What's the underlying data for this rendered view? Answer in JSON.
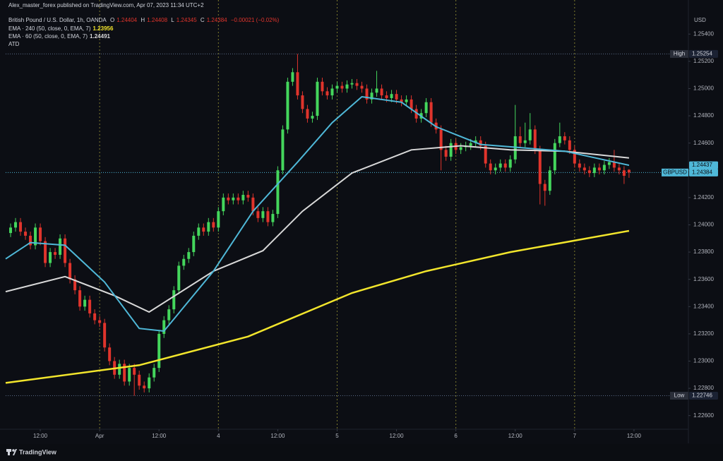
{
  "header": {
    "publisher": "Alex_master_forex published on TradingView.com, Apr 07, 2023 11:34 UTC+2"
  },
  "chart_data": {
    "type": "candlestick",
    "title": "British Pound / U.S. Dollar, 1h, OANDA",
    "ohlc_labels": [
      "O",
      "H",
      "L",
      "C"
    ],
    "change": "−0.00021 (−0.02%)",
    "extra_label": "ATD",
    "currency": "USD",
    "symbol": "GBPUSD",
    "high_label": "High",
    "low_label": "Low",
    "up_color": "#44d65c",
    "down_color": "#e0342c",
    "x": [
      -6,
      -5,
      -4,
      -3,
      -2,
      -1,
      0,
      1,
      2,
      3,
      4,
      5,
      6,
      7,
      8,
      9,
      10,
      11,
      12,
      13,
      14,
      15,
      16,
      17,
      18,
      19,
      20,
      21,
      22,
      23,
      24,
      25,
      26,
      27,
      28,
      29,
      30,
      31,
      32,
      33,
      34,
      35,
      36,
      37,
      38,
      39,
      40,
      41,
      42,
      43,
      44,
      45,
      46,
      47,
      48,
      49,
      50,
      51,
      52,
      53,
      54,
      55,
      56,
      57,
      58,
      59,
      60,
      61,
      62,
      63,
      64,
      65,
      66,
      67,
      68,
      69,
      70,
      71,
      72,
      73,
      74,
      75,
      76,
      77,
      78,
      79,
      80,
      81,
      82,
      83,
      84,
      85,
      86,
      87,
      88,
      89,
      90,
      91,
      92,
      93,
      94,
      95,
      96,
      97,
      98,
      99,
      100,
      101,
      102,
      103,
      104,
      105,
      106,
      107,
      108,
      109,
      110,
      111,
      112,
      113,
      114,
      115,
      116,
      117,
      118,
      119
    ],
    "ohlc": [
      [
        1.2394,
        1.2401,
        1.2391,
        1.2398
      ],
      [
        1.2398,
        1.2405,
        1.2395,
        1.2402
      ],
      [
        1.2402,
        1.2405,
        1.2392,
        1.2395
      ],
      [
        1.2395,
        1.2398,
        1.2389,
        1.2392
      ],
      [
        1.2392,
        1.2395,
        1.2382,
        1.2385
      ],
      [
        1.2385,
        1.2401,
        1.2382,
        1.2398
      ],
      [
        1.2398,
        1.2401,
        1.2385,
        1.2388
      ],
      [
        1.2388,
        1.2391,
        1.2369,
        1.2372
      ],
      [
        1.2372,
        1.2383,
        1.2369,
        1.238
      ],
      [
        1.238,
        1.2383,
        1.2375,
        1.2378
      ],
      [
        1.2378,
        1.2393,
        1.2375,
        1.239
      ],
      [
        1.239,
        1.2393,
        1.2369,
        1.2372
      ],
      [
        1.2372,
        1.2375,
        1.2357,
        1.236
      ],
      [
        1.236,
        1.2363,
        1.2349,
        1.2352
      ],
      [
        1.2352,
        1.2355,
        1.2337,
        1.234
      ],
      [
        1.234,
        1.2348,
        1.2337,
        1.2345
      ],
      [
        1.2345,
        1.2348,
        1.2332,
        1.2335
      ],
      [
        1.2335,
        1.2338,
        1.2327,
        1.233
      ],
      [
        1.233,
        1.2333,
        1.2325,
        1.2328
      ],
      [
        1.2328,
        1.2331,
        1.2307,
        1.231
      ],
      [
        1.231,
        1.2313,
        1.2297,
        1.23
      ],
      [
        1.23,
        1.2303,
        1.2287,
        1.229
      ],
      [
        1.229,
        1.2301,
        1.2287,
        1.2298
      ],
      [
        1.2298,
        1.2301,
        1.2282,
        1.2285
      ],
      [
        1.2285,
        1.2298,
        1.2282,
        1.2295
      ],
      [
        1.2295,
        1.2298,
        1.22746,
        1.229
      ],
      [
        1.229,
        1.2293,
        1.2279,
        1.2282
      ],
      [
        1.2282,
        1.2285,
        1.2277,
        1.228
      ],
      [
        1.228,
        1.2291,
        1.2277,
        1.2288
      ],
      [
        1.2288,
        1.2298,
        1.2285,
        1.2295
      ],
      [
        1.2295,
        1.2323,
        1.2292,
        1.232
      ],
      [
        1.232,
        1.2333,
        1.2317,
        1.233
      ],
      [
        1.233,
        1.2341,
        1.2327,
        1.2338
      ],
      [
        1.2338,
        1.2355,
        1.2335,
        1.2352
      ],
      [
        1.2352,
        1.2373,
        1.2349,
        1.237
      ],
      [
        1.237,
        1.2378,
        1.2367,
        1.2375
      ],
      [
        1.2375,
        1.2383,
        1.2372,
        1.238
      ],
      [
        1.238,
        1.2395,
        1.2377,
        1.2392
      ],
      [
        1.2392,
        1.2401,
        1.2389,
        1.2398
      ],
      [
        1.2398,
        1.2401,
        1.2392,
        1.2395
      ],
      [
        1.2395,
        1.2405,
        1.2392,
        1.2402
      ],
      [
        1.2402,
        1.2405,
        1.2395,
        1.2398
      ],
      [
        1.2398,
        1.2413,
        1.2395,
        1.241
      ],
      [
        1.241,
        1.2423,
        1.2407,
        1.242
      ],
      [
        1.242,
        1.2423,
        1.2415,
        1.2418
      ],
      [
        1.2418,
        1.2423,
        1.2415,
        1.242
      ],
      [
        1.242,
        1.2423,
        1.2415,
        1.2418
      ],
      [
        1.2418,
        1.2425,
        1.2415,
        1.2422
      ],
      [
        1.2422,
        1.2425,
        1.2417,
        1.242
      ],
      [
        1.242,
        1.2423,
        1.2407,
        1.241
      ],
      [
        1.241,
        1.2413,
        1.2402,
        1.2405
      ],
      [
        1.2405,
        1.2413,
        1.2402,
        1.241
      ],
      [
        1.241,
        1.2413,
        1.2399,
        1.2402
      ],
      [
        1.2402,
        1.2411,
        1.2399,
        1.2408
      ],
      [
        1.2408,
        1.2443,
        1.2405,
        1.244
      ],
      [
        1.244,
        1.2473,
        1.2437,
        1.247
      ],
      [
        1.247,
        1.2508,
        1.2467,
        1.2505
      ],
      [
        1.2505,
        1.2515,
        1.2502,
        1.2512
      ],
      [
        1.2512,
        1.25254,
        1.2492,
        1.2495
      ],
      [
        1.2495,
        1.2498,
        1.2482,
        1.2485
      ],
      [
        1.2485,
        1.2488,
        1.2475,
        1.2478
      ],
      [
        1.2478,
        1.2483,
        1.2475,
        1.248
      ],
      [
        1.248,
        1.2508,
        1.2477,
        1.2505
      ],
      [
        1.2505,
        1.2508,
        1.2495,
        1.2498
      ],
      [
        1.2498,
        1.2501,
        1.2492,
        1.2495
      ],
      [
        1.2495,
        1.2503,
        1.2492,
        1.25
      ],
      [
        1.25,
        1.2505,
        1.2497,
        1.2502
      ],
      [
        1.2502,
        1.2505,
        1.2497,
        1.25
      ],
      [
        1.25,
        1.2506,
        1.2497,
        1.2503
      ],
      [
        1.2503,
        1.2507,
        1.25,
        1.2504
      ],
      [
        1.2504,
        1.2507,
        1.2499,
        1.2502
      ],
      [
        1.2502,
        1.2505,
        1.2497,
        1.25
      ],
      [
        1.25,
        1.2503,
        1.2489,
        1.2492
      ],
      [
        1.2492,
        1.25,
        1.2489,
        1.2497
      ],
      [
        1.2497,
        1.2513,
        1.2494,
        1.25
      ],
      [
        1.25,
        1.2503,
        1.2492,
        1.2495
      ],
      [
        1.2495,
        1.2498,
        1.249,
        1.2493
      ],
      [
        1.2493,
        1.2499,
        1.249,
        1.2496
      ],
      [
        1.2496,
        1.2499,
        1.2489,
        1.2492
      ],
      [
        1.2492,
        1.2495,
        1.2487,
        1.249
      ],
      [
        1.249,
        1.2495,
        1.2487,
        1.2492
      ],
      [
        1.2492,
        1.2495,
        1.2482,
        1.2485
      ],
      [
        1.2485,
        1.2488,
        1.2475,
        1.2478
      ],
      [
        1.2478,
        1.2485,
        1.2475,
        1.2482
      ],
      [
        1.2482,
        1.2493,
        1.2479,
        1.249
      ],
      [
        1.249,
        1.2493,
        1.2472,
        1.2475
      ],
      [
        1.2475,
        1.2478,
        1.2467,
        1.247
      ],
      [
        1.247,
        1.2473,
        1.244,
        1.2455
      ],
      [
        1.2455,
        1.2458,
        1.2447,
        1.245
      ],
      [
        1.245,
        1.2463,
        1.2447,
        1.246
      ],
      [
        1.246,
        1.2463,
        1.2452,
        1.2455
      ],
      [
        1.2455,
        1.246,
        1.2452,
        1.2457
      ],
      [
        1.2457,
        1.2461,
        1.2454,
        1.2458
      ],
      [
        1.2458,
        1.2463,
        1.2455,
        1.246
      ],
      [
        1.246,
        1.2465,
        1.2457,
        1.2462
      ],
      [
        1.2462,
        1.2465,
        1.2455,
        1.2458
      ],
      [
        1.2458,
        1.2461,
        1.2442,
        1.2445
      ],
      [
        1.2445,
        1.2448,
        1.2437,
        1.244
      ],
      [
        1.244,
        1.2445,
        1.2437,
        1.2442
      ],
      [
        1.2442,
        1.2448,
        1.2439,
        1.2445
      ],
      [
        1.2445,
        1.2448,
        1.2439,
        1.2442
      ],
      [
        1.2442,
        1.2451,
        1.2439,
        1.2448
      ],
      [
        1.2448,
        1.2488,
        1.2445,
        1.2465
      ],
      [
        1.2465,
        1.2472,
        1.2457,
        1.246
      ],
      [
        1.246,
        1.2475,
        1.2457,
        1.2462
      ],
      [
        1.2462,
        1.2482,
        1.2459,
        1.247
      ],
      [
        1.247,
        1.2473,
        1.2452,
        1.2455
      ],
      [
        1.2455,
        1.2458,
        1.2415,
        1.243
      ],
      [
        1.243,
        1.2433,
        1.2414,
        1.2425
      ],
      [
        1.2425,
        1.2443,
        1.2422,
        1.244
      ],
      [
        1.244,
        1.2463,
        1.2437,
        1.246
      ],
      [
        1.246,
        1.2475,
        1.2457,
        1.2465
      ],
      [
        1.2465,
        1.2468,
        1.2459,
        1.2462
      ],
      [
        1.2462,
        1.2465,
        1.2452,
        1.2455
      ],
      [
        1.2455,
        1.2458,
        1.2442,
        1.2445
      ],
      [
        1.2445,
        1.2448,
        1.2439,
        1.2442
      ],
      [
        1.2442,
        1.2445,
        1.2437,
        1.244
      ],
      [
        1.244,
        1.2443,
        1.2435,
        1.2438
      ],
      [
        1.2438,
        1.2445,
        1.2435,
        1.2442
      ],
      [
        1.2442,
        1.2445,
        1.2437,
        1.244
      ],
      [
        1.244,
        1.2447,
        1.2437,
        1.2444
      ],
      [
        1.2444,
        1.2449,
        1.2441,
        1.2446
      ],
      [
        1.2446,
        1.2455,
        1.2439,
        1.2442
      ],
      [
        1.2442,
        1.2445,
        1.2437,
        1.244
      ],
      [
        1.244,
        1.2443,
        1.243,
        1.2436
      ],
      [
        1.24404,
        1.24408,
        1.24345,
        1.24384
      ]
    ],
    "lines": [
      {
        "name": "EMA · 240 (50, close, 0, EMA, 7)",
        "color": "#f2e52c",
        "x": [
          -7,
          20,
          42,
          63,
          78,
          95,
          119
        ],
        "values": [
          1.2284,
          1.2297,
          1.2318,
          1.235,
          1.2366,
          1.238,
          1.23956
        ]
      },
      {
        "name": "EMA · 60 (50, close, 0, EMA, 7)",
        "color": "#d9d9d9",
        "x": [
          -7,
          5,
          15,
          22,
          35,
          45,
          53,
          63,
          75,
          85,
          95,
          106,
          119
        ],
        "values": [
          1.2351,
          1.2362,
          1.2348,
          1.2336,
          1.2366,
          1.2381,
          1.241,
          1.2438,
          1.2455,
          1.2458,
          1.2455,
          1.2454,
          1.24491
        ]
      },
      {
        "color": "#4fb8d8",
        "price_tag": true,
        "x": [
          -7,
          -2,
          5,
          13,
          20,
          25,
          35,
          43,
          52,
          59,
          65,
          73,
          80,
          89,
          96,
          106,
          119
        ],
        "values": [
          1.2375,
          1.2387,
          1.2385,
          1.2358,
          1.2324,
          1.2322,
          1.2366,
          1.241,
          1.2446,
          1.2475,
          1.2494,
          1.249,
          1.2472,
          1.2459,
          1.2457,
          1.2454,
          1.24437
        ]
      }
    ],
    "xlim": [
      -7,
      131
    ],
    "xticks": [
      {
        "value": 0,
        "label": "12:00"
      },
      {
        "value": 12,
        "label": "Apr"
      },
      {
        "value": 24,
        "label": "12:00"
      },
      {
        "value": 36,
        "label": "4"
      },
      {
        "value": 48,
        "label": "12:00"
      },
      {
        "value": 60,
        "label": "5"
      },
      {
        "value": 72,
        "label": "12:00"
      },
      {
        "value": 84,
        "label": "6"
      },
      {
        "value": 96,
        "label": "12:00"
      },
      {
        "value": 108,
        "label": "7"
      },
      {
        "value": 120,
        "label": "12:00"
      }
    ],
    "session_breaks": [
      12,
      36,
      60,
      84,
      108
    ],
    "ylim": [
      1.225,
      1.2565
    ],
    "yticks": [
      {
        "value": 1.226,
        "label": "1.22600"
      },
      {
        "value": 1.228,
        "label": "1.22800"
      },
      {
        "value": 1.23,
        "label": "1.23000"
      },
      {
        "value": 1.232,
        "label": "1.23200"
      },
      {
        "value": 1.234,
        "label": "1.23400"
      },
      {
        "value": 1.236,
        "label": "1.23600"
      },
      {
        "value": 1.238,
        "label": "1.23800"
      },
      {
        "value": 1.24,
        "label": "1.24000"
      },
      {
        "value": 1.242,
        "label": "1.24200"
      },
      {
        "value": 1.244,
        "label": "1.24400"
      },
      {
        "value": 1.246,
        "label": "1.24600"
      },
      {
        "value": 1.248,
        "label": "1.24800"
      },
      {
        "value": 1.25,
        "label": "1.25000"
      },
      {
        "value": 1.252,
        "label": "1.25200"
      },
      {
        "value": 1.254,
        "label": "1.25400"
      }
    ]
  },
  "footer": {
    "brand": "TradingView"
  }
}
